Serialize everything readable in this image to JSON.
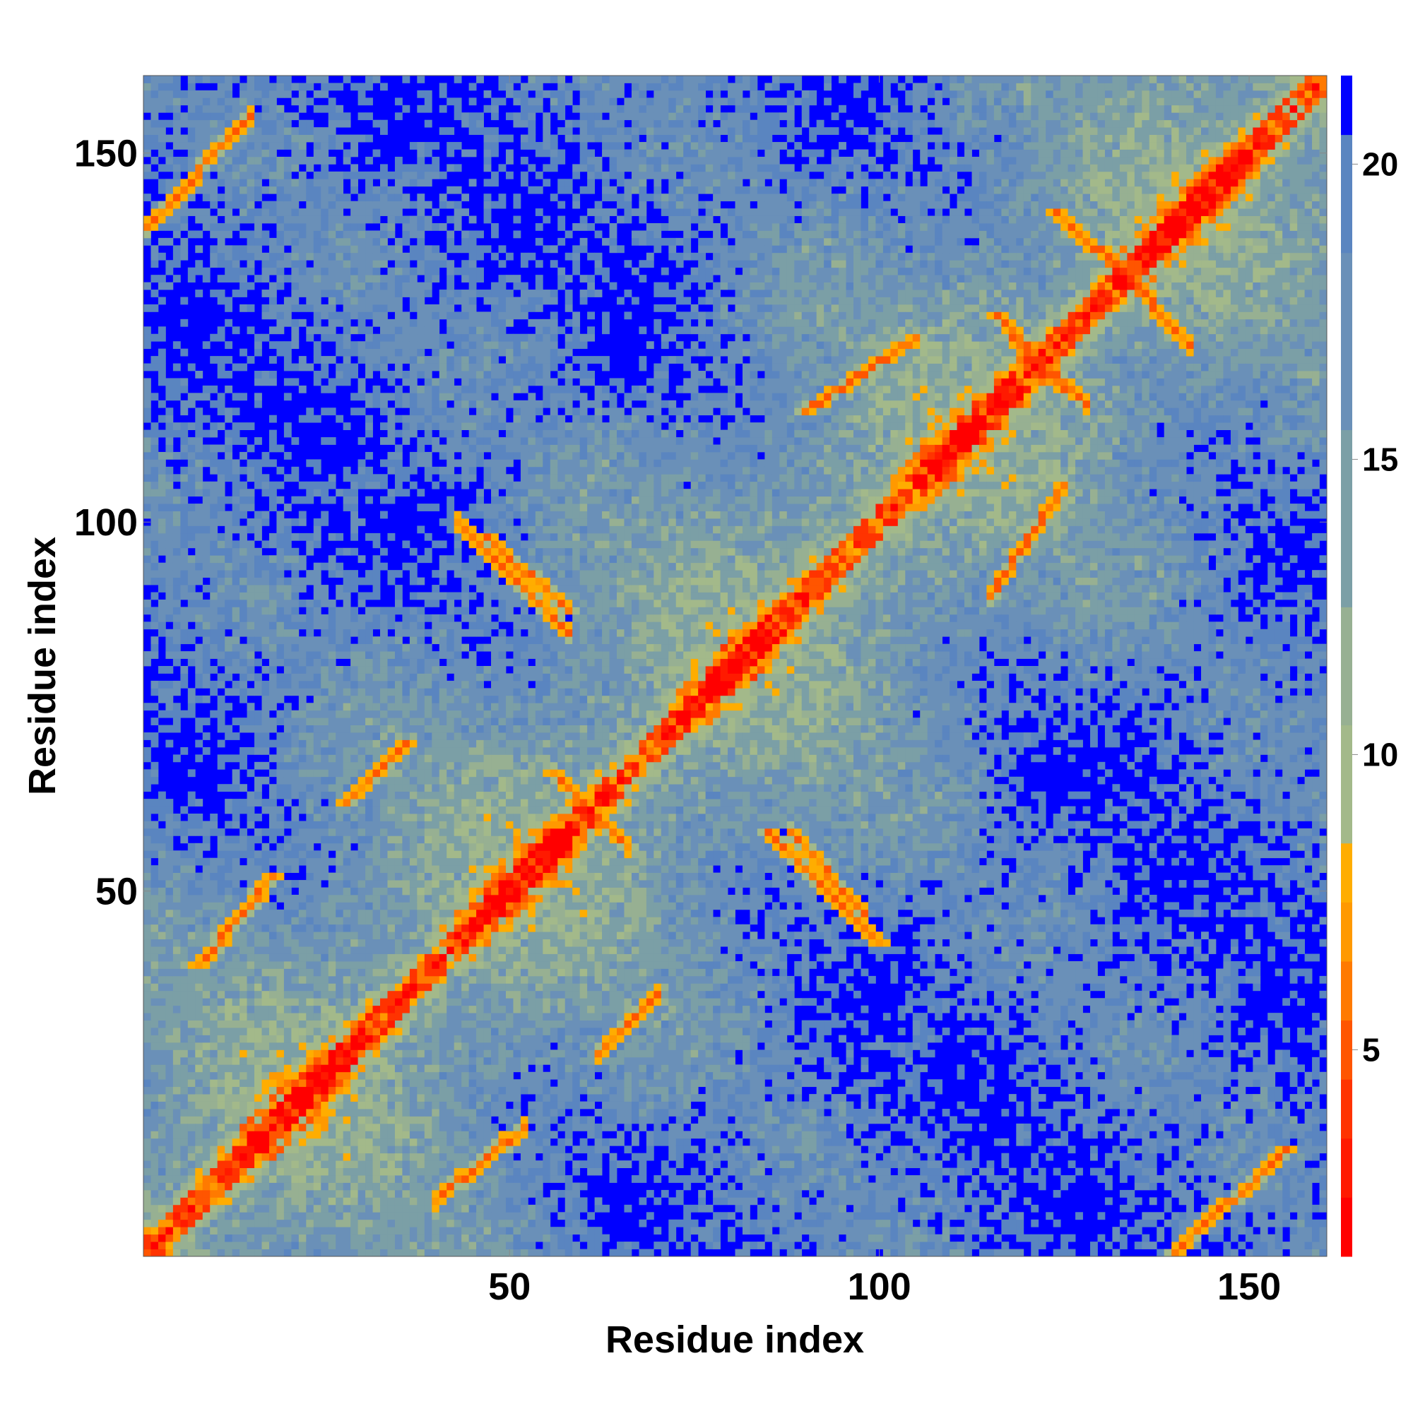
{
  "chart_data": {
    "type": "heatmap",
    "title": "",
    "xlabel": "Residue index",
    "ylabel": "Residue index",
    "n_residues": 160,
    "xlim": [
      1,
      160
    ],
    "ylim": [
      1,
      160
    ],
    "x_ticks": [
      {
        "value": 50,
        "label": "50"
      },
      {
        "value": 100,
        "label": "100"
      },
      {
        "value": 150,
        "label": "150"
      }
    ],
    "y_ticks": [
      {
        "value": 50,
        "label": "50"
      },
      {
        "value": 100,
        "label": "100"
      },
      {
        "value": 150,
        "label": "150"
      }
    ],
    "colorbar": {
      "range": [
        1.5,
        21.5
      ],
      "ticks": [
        {
          "value": 5,
          "label": "5"
        },
        {
          "value": 10,
          "label": "10"
        },
        {
          "value": 15,
          "label": "15"
        },
        {
          "value": 20,
          "label": "20"
        }
      ],
      "levels": [
        {
          "max": 2.5,
          "color": "#ff0000"
        },
        {
          "max": 3.5,
          "color": "#ff1a00"
        },
        {
          "max": 4.5,
          "color": "#ff3300"
        },
        {
          "max": 5.5,
          "color": "#ff5500"
        },
        {
          "max": 6.5,
          "color": "#ff7a00"
        },
        {
          "max": 7.5,
          "color": "#ff9900"
        },
        {
          "max": 8.5,
          "color": "#ffad00"
        },
        {
          "max": 10.5,
          "color": "#a3b98a"
        },
        {
          "max": 12.5,
          "color": "#97b092"
        },
        {
          "max": 15.5,
          "color": "#7b9fa6"
        },
        {
          "max": 18.5,
          "color": "#6a90b8"
        },
        {
          "max": 20.5,
          "color": "#5a85c0"
        },
        {
          "max": 99,
          "color": "#0000ff"
        }
      ]
    },
    "grid": false,
    "colors": {
      "diagonal": "#ff0000",
      "contact": "#ff9900",
      "near": "#a3b98a",
      "mid": "#5a85c0",
      "far": "#0000ff"
    },
    "features": [
      {
        "kind": "helix_band",
        "from": 1,
        "to": 160
      },
      {
        "kind": "sheet_pair",
        "i": [
          56,
          66
        ],
        "j": [
          66,
          56
        ],
        "note": "antiparallel"
      },
      {
        "kind": "sheet_pair",
        "i": [
          47,
          58
        ],
        "j": [
          98,
          88
        ],
        "note": "antiparallel"
      },
      {
        "kind": "sheet_pair",
        "i": [
          85,
          100
        ],
        "j": [
          58,
          43
        ],
        "note": "antiparallel"
      },
      {
        "kind": "sheet_pair",
        "i": [
          116,
          125
        ],
        "j": [
          128,
          118
        ],
        "note": "antiparallel"
      },
      {
        "kind": "sheet_pair",
        "i": [
          124,
          135
        ],
        "j": [
          142,
          132
        ],
        "note": "antiparallel"
      },
      {
        "kind": "sheet_pair",
        "i": [
          90,
          105
        ],
        "j": [
          115,
          125
        ],
        "note": "parallel"
      },
      {
        "kind": "sheet_pair",
        "i": [
          28,
          36
        ],
        "j": [
          62,
          70
        ],
        "note": "contacts"
      },
      {
        "kind": "sheet_pair",
        "i": [
          8,
          18
        ],
        "j": [
          40,
          52
        ],
        "note": "contacts"
      },
      {
        "kind": "sheet_pair",
        "i": [
          140,
          155
        ],
        "j": [
          1,
          15
        ],
        "note": "terminal contacts"
      }
    ]
  }
}
